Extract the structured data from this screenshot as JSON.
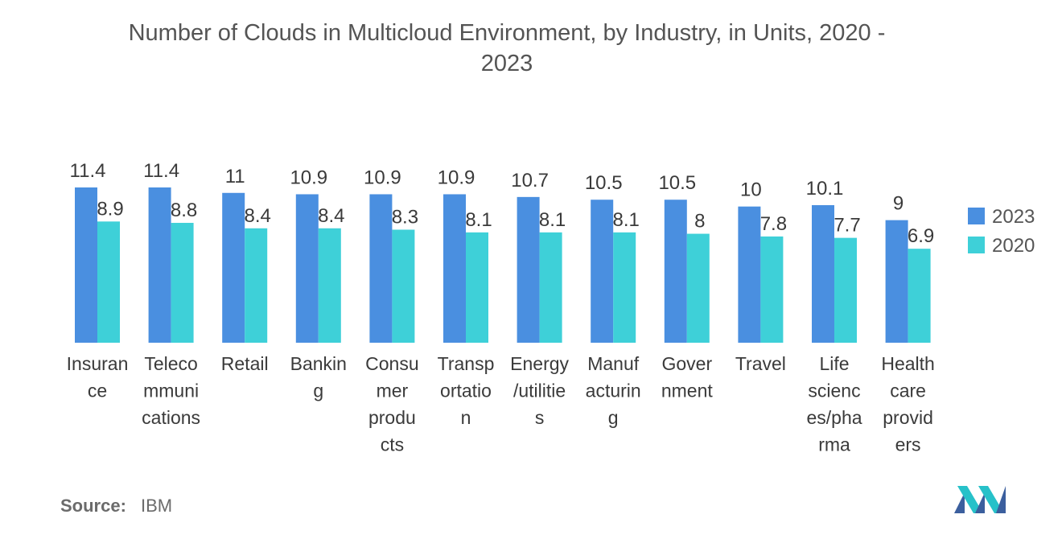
{
  "chart_data": {
    "type": "bar",
    "title_lines": [
      "Number of Clouds in Multicloud Environment, by Industry, in Units, 2020 -",
      "2023"
    ],
    "categories": [
      "Insurance",
      "Telecommunications",
      "Retail",
      "Banking",
      "Consumer products",
      "Transportation",
      "Energy/utilities",
      "Manufacturing",
      "Government",
      "Travel",
      "Life sciences/pharma",
      "Health care providers"
    ],
    "category_label_lines": [
      [
        "Insuran",
        "ce"
      ],
      [
        "Teleco",
        "mmuni",
        "cations"
      ],
      [
        "Retail"
      ],
      [
        "Bankin",
        "g"
      ],
      [
        "Consu",
        "mer",
        "produ",
        "cts"
      ],
      [
        "Transp",
        "ortatio",
        "n"
      ],
      [
        "Energy",
        "/utilitie",
        "s"
      ],
      [
        "Manuf",
        "acturin",
        "g"
      ],
      [
        "Gover",
        "nment"
      ],
      [
        "Travel"
      ],
      [
        "Life",
        "scienc",
        "es/pha",
        "rma"
      ],
      [
        "Health",
        "care",
        "provid",
        "ers"
      ]
    ],
    "series": [
      {
        "name": "2023",
        "color": "#4a8fe0",
        "values": [
          11.4,
          11.4,
          11,
          10.9,
          10.9,
          10.9,
          10.7,
          10.5,
          10.5,
          10,
          10.1,
          9
        ],
        "labels": [
          "11.4",
          "11.4",
          "11",
          "10.9",
          "10.9",
          "10.9",
          "10.7",
          "10.5",
          "10.5",
          "10",
          "10.1",
          "9"
        ]
      },
      {
        "name": "2020",
        "color": "#3ed0d8",
        "values": [
          8.9,
          8.8,
          8.4,
          8.4,
          8.3,
          8.1,
          8.1,
          8.1,
          8,
          7.8,
          7.7,
          6.9
        ],
        "labels": [
          "8.9",
          "8.8",
          "8.4",
          "8.4",
          "8.3",
          "8.1",
          "8.1",
          "8.1",
          "8",
          "7.8",
          "7.7",
          "6.9"
        ]
      }
    ],
    "ylim": [
      0,
      11.4
    ],
    "xlabel": "",
    "ylabel": "",
    "grid": false,
    "legend_position": "right"
  },
  "source": {
    "label": "Source:",
    "value": "IBM"
  },
  "logo": {
    "icon": "mordor-logo-icon"
  }
}
